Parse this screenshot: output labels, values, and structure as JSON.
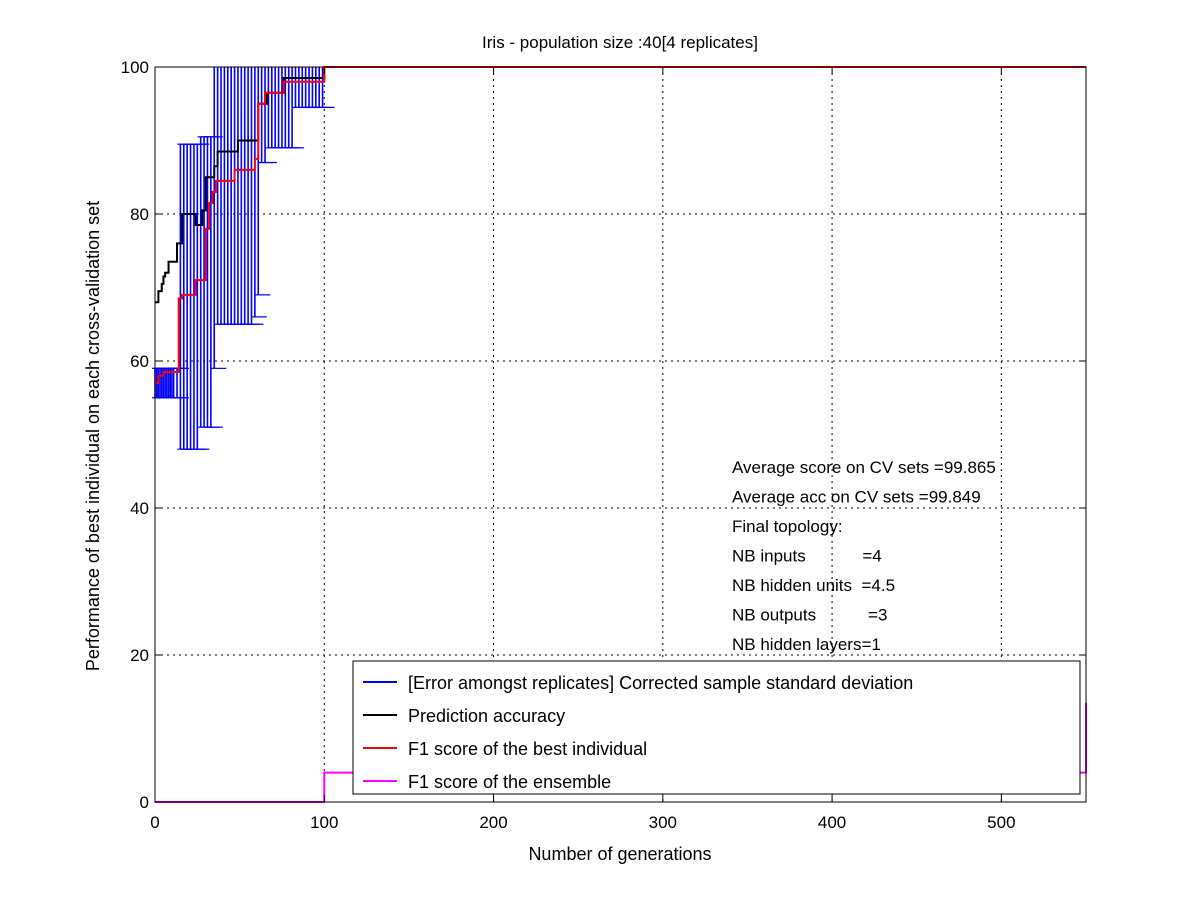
{
  "chart_data": {
    "type": "line",
    "title": "Iris - population size :40[4 replicates]",
    "xlabel": "Number of generations",
    "ylabel": "Performance of best individual on each cross-validation set",
    "xlim": [
      0,
      550
    ],
    "ylim": [
      0,
      100
    ],
    "xticks": [
      0,
      100,
      200,
      300,
      400,
      500
    ],
    "yticks": [
      0,
      20,
      40,
      60,
      80,
      100
    ],
    "grid": true,
    "legend_position": "bottom-right",
    "colors": {
      "std": "#0000ff",
      "accuracy": "#000000",
      "f1_best": "#ff0000",
      "f1_ensemble": "#ff00ff",
      "grid": "#000000"
    },
    "series": [
      {
        "name": "[Error amongst replicates] Corrected sample standard deviation",
        "key": "std",
        "kind": "errorbar",
        "x": [
          0,
          1,
          2,
          3,
          4,
          5,
          6,
          7,
          8,
          9,
          10,
          11,
          13,
          15,
          17,
          19,
          21,
          23,
          25,
          27,
          29,
          31,
          33,
          35,
          37,
          39,
          41,
          43,
          45,
          47,
          49,
          51,
          53,
          55,
          57,
          59,
          61,
          63,
          65,
          67,
          69,
          71,
          73,
          75,
          77,
          79,
          81,
          83,
          85,
          87,
          89,
          91,
          93,
          95,
          97,
          99
        ],
        "low": [
          55,
          55,
          55,
          55,
          55,
          55,
          55,
          55,
          55,
          55,
          55,
          55,
          55,
          48,
          48,
          48,
          48,
          48,
          48,
          51,
          51,
          51,
          51,
          59,
          65,
          65,
          65,
          65,
          65,
          65,
          65,
          65,
          65,
          65,
          65,
          66,
          69,
          87,
          87,
          89,
          89,
          89,
          89,
          89,
          89,
          89,
          89,
          94.5,
          94.5,
          94.5,
          94.5,
          94.5,
          94.5,
          94.5,
          94.5,
          94.5
        ],
        "high": [
          59,
          59,
          59,
          59,
          59,
          59,
          59,
          59,
          59,
          59,
          59,
          59,
          59,
          89.5,
          89.5,
          89.5,
          89.5,
          89.5,
          89.5,
          90.5,
          90.5,
          90.5,
          90.5,
          100,
          100,
          100,
          100,
          100,
          100,
          100,
          100,
          100,
          100,
          100,
          100,
          100,
          100,
          100,
          100,
          100,
          100,
          100,
          100,
          100,
          100,
          100,
          100,
          100,
          100,
          100,
          100,
          100,
          100,
          100,
          100,
          100
        ]
      },
      {
        "name": "Prediction accuracy",
        "key": "accuracy",
        "kind": "step",
        "x": [
          0,
          2,
          4,
          5,
          6,
          8,
          12,
          13,
          16,
          24,
          28,
          30,
          32,
          35,
          37,
          43,
          49,
          57,
          61,
          66,
          76,
          100,
          550
        ],
        "y": [
          68,
          69.5,
          70.5,
          71.5,
          72,
          73.5,
          73.5,
          76,
          80,
          78.5,
          80.5,
          85,
          85,
          86.5,
          88.5,
          88.5,
          90,
          90,
          95,
          96.5,
          98.5,
          100,
          100
        ]
      },
      {
        "name": "F1 score of the best individual",
        "key": "f1_best",
        "kind": "step",
        "x": [
          0,
          2,
          5,
          12,
          14,
          16,
          24,
          28,
          30,
          32,
          34,
          36,
          40,
          47,
          55,
          59,
          61,
          65,
          76,
          100,
          550
        ],
        "y": [
          57,
          58,
          58.5,
          58.5,
          68.5,
          69,
          71,
          71,
          78,
          81.5,
          83,
          84.5,
          84.5,
          86,
          86,
          87.5,
          95,
          96.5,
          98,
          100,
          100
        ]
      },
      {
        "name": "F1 score of the ensemble",
        "key": "f1_ensemble",
        "kind": "step",
        "x": [
          0,
          99,
          100,
          550
        ],
        "y": [
          0,
          0,
          4,
          13.5
        ]
      }
    ],
    "annotations": [
      "Average score on CV sets =99.865",
      "Average acc on CV sets =99.849",
      "Final topology:",
      "NB inputs            =4",
      "NB hidden units  =4.5",
      "NB outputs           =3",
      "NB hidden layers=1"
    ]
  }
}
